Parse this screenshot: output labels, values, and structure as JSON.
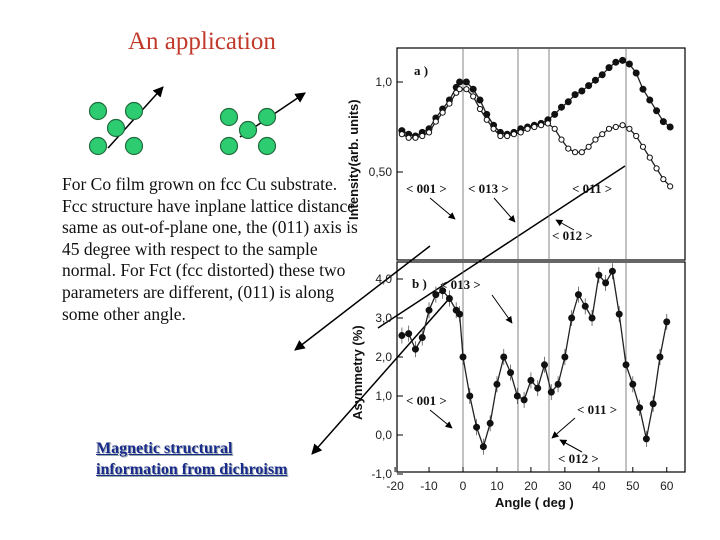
{
  "slide": {
    "title": "An application",
    "body": "For Co film grown on fcc Cu substrate. Fcc structure have inplane lattice distance same as out-of-plane one, the (011) axis is 45 degree with respect to the sample normal. For Fct (fcc distorted) these two parameters are different, (011) is along some other angle.",
    "footer_line1": "Magnetic structural",
    "footer_line2": "information from dichroism"
  },
  "colors": {
    "title": "#c0392b",
    "footer": "#1a2a8c",
    "atom": "#2ecc71",
    "atom_border": "#1e6b3c"
  },
  "chart_data": [
    {
      "type": "line",
      "panel_label": "a )",
      "ylabel": "Intensity(arb. units)",
      "xlim": [
        -20,
        65
      ],
      "ylim": [
        0.2,
        1.2
      ],
      "yticks": [
        "1,0",
        "0,50"
      ],
      "series": [
        {
          "marker": "filled",
          "x": [
            -18,
            -16,
            -14,
            -12,
            -10,
            -8,
            -6,
            -4,
            -2,
            -1,
            1,
            3,
            5,
            7,
            9,
            11,
            13,
            15,
            17,
            19,
            21,
            23,
            25,
            27,
            29,
            31,
            33,
            35,
            37,
            39,
            41,
            43,
            45,
            47,
            49,
            51,
            53,
            55,
            57,
            59,
            61
          ],
          "values": [
            0.73,
            0.71,
            0.7,
            0.72,
            0.74,
            0.8,
            0.85,
            0.9,
            0.97,
            1.0,
            1.0,
            0.96,
            0.9,
            0.82,
            0.76,
            0.72,
            0.71,
            0.72,
            0.74,
            0.75,
            0.76,
            0.77,
            0.79,
            0.82,
            0.86,
            0.89,
            0.93,
            0.95,
            0.98,
            1.01,
            1.04,
            1.08,
            1.11,
            1.12,
            1.1,
            1.05,
            0.96,
            0.9,
            0.84,
            0.78,
            0.75
          ]
        },
        {
          "marker": "open",
          "x": [
            -18,
            -16,
            -14,
            -12,
            -10,
            -8,
            -6,
            -4,
            -2,
            -1,
            1,
            3,
            5,
            7,
            9,
            11,
            13,
            15,
            17,
            19,
            21,
            23,
            25,
            27,
            29,
            31,
            33,
            35,
            37,
            39,
            41,
            43,
            45,
            47,
            49,
            51,
            53,
            55,
            57,
            59,
            61
          ],
          "values": [
            0.71,
            0.69,
            0.69,
            0.7,
            0.72,
            0.78,
            0.83,
            0.88,
            0.94,
            0.96,
            0.96,
            0.92,
            0.85,
            0.79,
            0.74,
            0.7,
            0.7,
            0.71,
            0.72,
            0.74,
            0.75,
            0.76,
            0.77,
            0.74,
            0.68,
            0.63,
            0.61,
            0.61,
            0.64,
            0.68,
            0.71,
            0.74,
            0.75,
            0.76,
            0.74,
            0.7,
            0.64,
            0.58,
            0.52,
            0.46,
            0.42
          ]
        }
      ],
      "annotations": [
        "< 001 >",
        "< 013 >",
        "< 011 >",
        "< 012 >"
      ]
    },
    {
      "type": "line",
      "panel_label": "b )",
      "ylabel": "Asymmetry (%)",
      "xlabel": "Angle  (  deg )",
      "xlim": [
        -20,
        65
      ],
      "ylim": [
        -1.0,
        4.5
      ],
      "xticks": [
        "-20",
        "-10",
        "0",
        "10",
        "20",
        "30",
        "40",
        "50",
        "60"
      ],
      "yticks": [
        "4,0",
        "3,0",
        "2,0",
        "1,0",
        "0,0",
        "-1,0"
      ],
      "series": [
        {
          "marker": "filled",
          "x": [
            -18,
            -16,
            -14,
            -12,
            -10,
            -8,
            -6,
            -4,
            -2,
            -1,
            0,
            2,
            4,
            6,
            8,
            10,
            12,
            14,
            16,
            18,
            20,
            22,
            24,
            26,
            28,
            30,
            32,
            34,
            36,
            38,
            40,
            42,
            44,
            46,
            48,
            50,
            52,
            54,
            56,
            58,
            60
          ],
          "values": [
            2.55,
            2.6,
            2.2,
            2.5,
            3.2,
            3.6,
            3.7,
            3.5,
            3.2,
            3.1,
            2.0,
            1.0,
            0.2,
            -0.3,
            0.3,
            1.3,
            2.0,
            1.6,
            1.0,
            0.9,
            1.4,
            1.2,
            1.8,
            1.1,
            1.3,
            2.0,
            3.0,
            3.6,
            3.3,
            3.0,
            4.1,
            3.9,
            4.2,
            3.1,
            1.8,
            1.3,
            0.7,
            -0.1,
            0.8,
            2.0,
            2.9
          ]
        }
      ],
      "annotations": [
        "< 013 >",
        "< 001 >",
        "< 011 >",
        "< 012 >"
      ]
    }
  ]
}
